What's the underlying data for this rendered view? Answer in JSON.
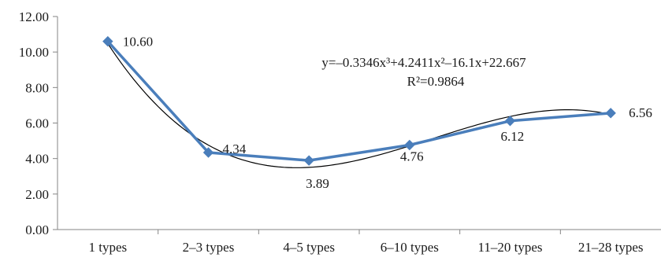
{
  "chart_data": {
    "type": "line",
    "categories": [
      "1 types",
      "2–3 types",
      "4–5 types",
      "6–10 types",
      "11–20 types",
      "21–28 types"
    ],
    "series": [
      {
        "values": [
          10.6,
          4.34,
          3.89,
          4.76,
          6.12,
          6.56
        ],
        "data_labels": [
          "10.60",
          "4.34",
          "3.89",
          "4.76",
          "6.12",
          "6.56"
        ],
        "color": "#4a7ebb"
      }
    ],
    "trendline": {
      "type": "polynomial",
      "order": 3,
      "coefficients": [
        -0.3346,
        4.2411,
        -16.1,
        22.667
      ],
      "equation": "y=–0.3346x³+4.2411x²–16.1x+22.667",
      "r_squared": "R²=0.9864",
      "color": "#000000"
    },
    "y_ticks": [
      "0.00",
      "2.00",
      "4.00",
      "6.00",
      "8.00",
      "10.00",
      "12.00"
    ],
    "ylim": [
      0,
      12
    ],
    "grid": false,
    "legend": "none",
    "title": "",
    "xlabel": "",
    "ylabel": ""
  }
}
